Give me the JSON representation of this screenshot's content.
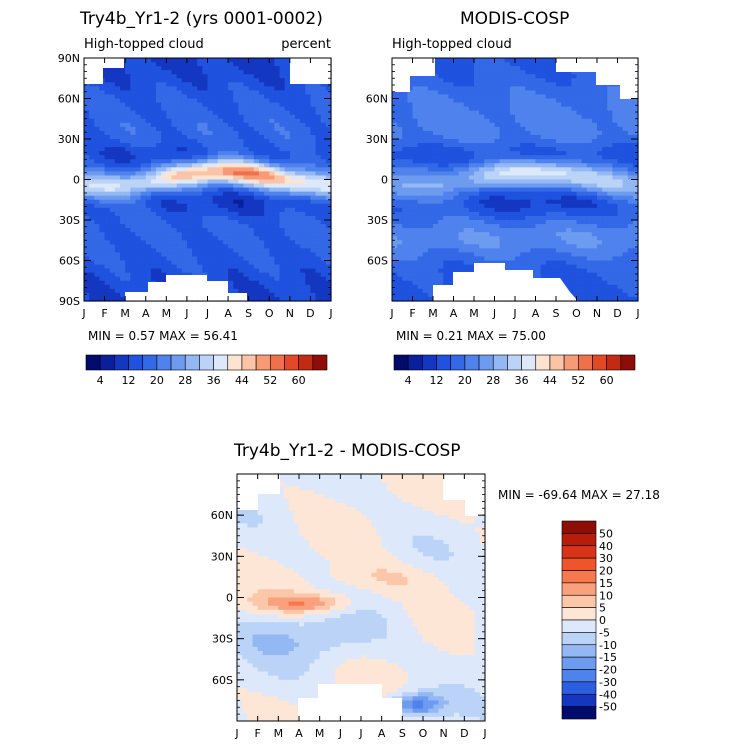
{
  "chart_data": [
    {
      "id": "model",
      "type": "heatmap",
      "title": "Try4b_Yr1-2 (yrs 0001-0002)",
      "subtitle_left": "High-topped cloud",
      "subtitle_right": "percent",
      "x_ticks": [
        "J",
        "F",
        "M",
        "A",
        "M",
        "J",
        "J",
        "A",
        "S",
        "O",
        "N",
        "D",
        "J"
      ],
      "y_ticks": [
        "90N",
        "60N",
        "30N",
        "0",
        "30S",
        "60S",
        "90S"
      ],
      "stats": "MIN =    0.57  MAX =    56.41",
      "colorbar_labels": [
        "4",
        "12",
        "20",
        "28",
        "36",
        "44",
        "52",
        "60"
      ],
      "colorbar_levels": [
        0,
        4,
        8,
        12,
        16,
        20,
        24,
        28,
        32,
        36,
        40,
        44,
        48,
        52,
        56,
        60,
        64
      ],
      "min": 0.57,
      "max": 56.41,
      "lat_range": [
        -90,
        90
      ],
      "month_range": [
        0,
        12
      ]
    },
    {
      "id": "obs",
      "type": "heatmap",
      "title": "MODIS-COSP",
      "subtitle_left": "High-topped cloud",
      "subtitle_right": "",
      "x_ticks": [
        "J",
        "F",
        "M",
        "A",
        "M",
        "J",
        "J",
        "A",
        "S",
        "O",
        "N",
        "D",
        "J"
      ],
      "y_ticks": [
        "60N",
        "30N",
        "0",
        "30S",
        "60S"
      ],
      "stats": "MIN =    0.21  MAX =    75.00",
      "colorbar_labels": [
        "4",
        "12",
        "20",
        "28",
        "36",
        "44",
        "52",
        "60"
      ],
      "colorbar_levels": [
        0,
        4,
        8,
        12,
        16,
        20,
        24,
        28,
        32,
        36,
        40,
        44,
        48,
        52,
        56,
        60,
        64
      ],
      "min": 0.21,
      "max": 75.0
    },
    {
      "id": "diff",
      "type": "heatmap",
      "title": "Try4b_Yr1-2 - MODIS-COSP",
      "x_ticks": [
        "J",
        "F",
        "M",
        "A",
        "M",
        "J",
        "J",
        "A",
        "S",
        "O",
        "N",
        "D",
        "J"
      ],
      "y_ticks": [
        "60N",
        "30N",
        "0",
        "30S",
        "60S"
      ],
      "stats": "MIN =  -69.64  MAX =   27.18",
      "colorbar_labels": [
        "50",
        "40",
        "30",
        "20",
        "15",
        "10",
        "5",
        "0",
        "-5",
        "-10",
        "-15",
        "-20",
        "-30",
        "-40",
        "-50"
      ],
      "min": -69.64,
      "max": 27.18
    }
  ],
  "colors": {
    "seq": [
      "#000b6b",
      "#0a1f9c",
      "#1437c2",
      "#1f52de",
      "#3368e6",
      "#4f82ec",
      "#6d9bf0",
      "#93b8f4",
      "#bcd3f8",
      "#dde8fb",
      "#fde3d0",
      "#fbc4a6",
      "#f79a76",
      "#f07149",
      "#e24a26",
      "#c22a12",
      "#8e0d06"
    ],
    "div": [
      "#8e0d06",
      "#b81d0c",
      "#d8341a",
      "#ee552c",
      "#f6784f",
      "#f9a07c",
      "#fcc6a9",
      "#fde6d6",
      "#dde8fb",
      "#bcd3f8",
      "#93b8f4",
      "#6d9bf0",
      "#4f82ec",
      "#2c5fe0",
      "#1437c2",
      "#000b6b"
    ]
  }
}
